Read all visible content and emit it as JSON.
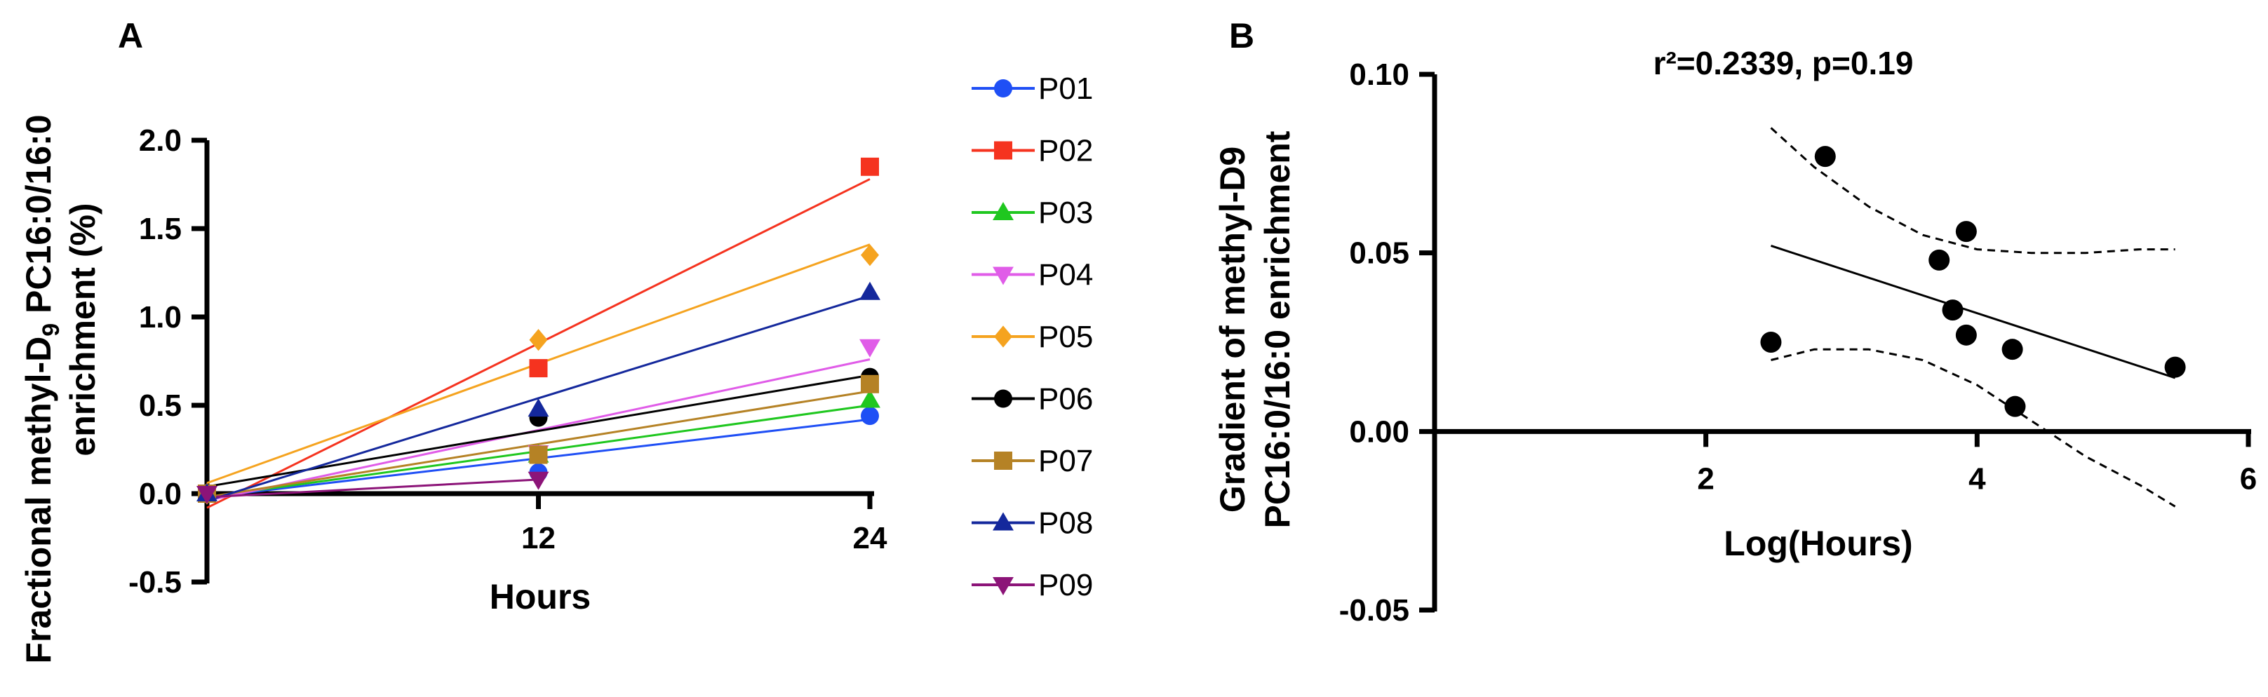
{
  "chart_data": [
    {
      "type": "line",
      "panel_label": "A",
      "xlabel": "Hours",
      "ylabel_line1_pre": "Fractional methyl-D",
      "ylabel_line1_sub": "9",
      "ylabel_line1_post": " PC16:0/16:0",
      "ylabel_line2": "enrichment (%)",
      "xlim": [
        0,
        24
      ],
      "ylim": [
        -0.5,
        2.0
      ],
      "xticks": [
        12,
        24
      ],
      "xtick_labels": [
        "12",
        "24"
      ],
      "yticks": [
        -0.5,
        0.0,
        0.5,
        1.0,
        1.5,
        2.0
      ],
      "ytick_labels": [
        "-0.5",
        "0.0",
        "0.5",
        "1.0",
        "1.5",
        "2.0"
      ],
      "series": [
        {
          "name": "P01",
          "color": "#1f4ff5",
          "marker": "circle",
          "x": [
            0,
            12,
            24
          ],
          "y": [
            0.0,
            0.12,
            0.44
          ],
          "fit": [
            -0.02,
            0.42
          ]
        },
        {
          "name": "P02",
          "color": "#f5331f",
          "marker": "square",
          "x": [
            0,
            12,
            24
          ],
          "y": [
            0.0,
            0.71,
            1.85
          ],
          "fit": [
            -0.08,
            1.78
          ]
        },
        {
          "name": "P03",
          "color": "#1fc71f",
          "marker": "triangle-up",
          "x": [
            0,
            12,
            24
          ],
          "y": [
            0.0,
            0.22,
            0.53
          ],
          "fit": [
            -0.02,
            0.5
          ]
        },
        {
          "name": "P04",
          "color": "#e05ce8",
          "marker": "triangle-down",
          "x": [
            0,
            12,
            24
          ],
          "y": [
            0.0,
            0.23,
            0.83
          ],
          "fit": [
            -0.04,
            0.76
          ]
        },
        {
          "name": "P05",
          "color": "#f5a31f",
          "marker": "diamond",
          "x": [
            0,
            12,
            24
          ],
          "y": [
            0.0,
            0.87,
            1.35
          ],
          "fit": [
            0.06,
            1.41
          ]
        },
        {
          "name": "P06",
          "color": "#000000",
          "marker": "circle",
          "x": [
            0,
            12,
            24
          ],
          "y": [
            0.0,
            0.43,
            0.66
          ],
          "fit": [
            0.04,
            0.67
          ]
        },
        {
          "name": "P07",
          "color": "#b58225",
          "marker": "square",
          "x": [
            0,
            12,
            24
          ],
          "y": [
            0.0,
            0.22,
            0.62
          ],
          "fit": [
            -0.02,
            0.58
          ]
        },
        {
          "name": "P08",
          "color": "#14289c",
          "marker": "triangle-up",
          "x": [
            0,
            12,
            24
          ],
          "y": [
            0.0,
            0.48,
            1.14
          ],
          "fit": [
            -0.04,
            1.12
          ]
        },
        {
          "name": "P09",
          "color": "#8c1478",
          "marker": "triangle-down",
          "x": [
            0,
            12
          ],
          "y": [
            0.0,
            0.08
          ],
          "fit": [
            -0.02,
            0.08
          ],
          "fit_x": [
            0,
            12
          ]
        }
      ]
    },
    {
      "type": "scatter",
      "panel_label": "B",
      "annotation": "r²=0.2339, p=0.19",
      "xlabel": "Log(Hours)",
      "ylabel_line1": "Gradient of methyl-D9",
      "ylabel_line2": "PC16:0/16:0 enrichment",
      "xlim": [
        0,
        6
      ],
      "ylim": [
        -0.05,
        0.1
      ],
      "xticks": [
        2,
        4,
        6
      ],
      "xtick_labels": [
        "2",
        "4",
        "6"
      ],
      "yticks": [
        -0.05,
        0.0,
        0.05,
        0.1
      ],
      "ytick_labels": [
        "-0.05",
        "0.00",
        "0.05",
        "0.10"
      ],
      "points": [
        {
          "x": 2.48,
          "y": 0.025
        },
        {
          "x": 2.88,
          "y": 0.077
        },
        {
          "x": 3.72,
          "y": 0.048
        },
        {
          "x": 3.82,
          "y": 0.034
        },
        {
          "x": 3.92,
          "y": 0.056
        },
        {
          "x": 3.92,
          "y": 0.027
        },
        {
          "x": 4.26,
          "y": 0.023
        },
        {
          "x": 4.28,
          "y": 0.007
        },
        {
          "x": 5.46,
          "y": 0.018
        }
      ],
      "regression_line": {
        "x": [
          2.48,
          5.46
        ],
        "y": [
          0.052,
          0.015
        ]
      },
      "confidence_band_upper": {
        "x": [
          2.48,
          2.8,
          3.2,
          3.6,
          4.0,
          4.4,
          4.8,
          5.2,
          5.46
        ],
        "y": [
          0.085,
          0.074,
          0.063,
          0.055,
          0.051,
          0.05,
          0.05,
          0.051,
          0.051
        ]
      },
      "confidence_band_lower": {
        "x": [
          2.48,
          2.8,
          3.2,
          3.6,
          4.0,
          4.4,
          4.8,
          5.2,
          5.46
        ],
        "y": [
          0.02,
          0.023,
          0.023,
          0.02,
          0.013,
          0.003,
          -0.007,
          -0.015,
          -0.021
        ]
      }
    }
  ]
}
